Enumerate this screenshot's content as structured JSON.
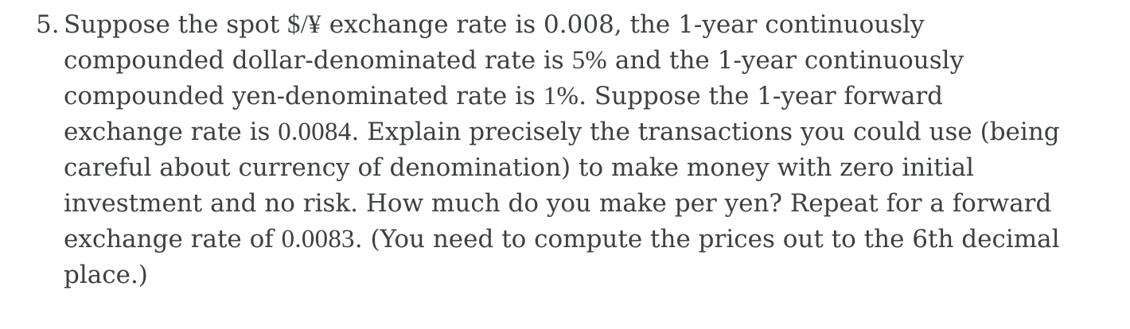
{
  "page": {
    "background_color": "#ffffff",
    "text_color": "#3d4043"
  },
  "problem": {
    "number": "5.",
    "full_text": "5. Suppose the spot $/¥ exchange rate is 0.008, the 1-year continuously compounded dollar-denominated rate is 5% and the 1-year continuously compounded yen-denominated rate is 1%. Suppose the 1-year forward exchange rate is 0.0084. Explain precisely the transactions you could use (being careful about currency of denomination) to make money with zero initial investment and no risk. How much do you make per yen? Repeat for a forward exchange rate of 0.0083. (You need to compute the prices out to the 6th decimal place.)",
    "lines": [
      [
        {
          "t": "Suppose the spot "
        },
        {
          "t": "$/¥",
          "m": true
        },
        {
          "t": " exchange rate is 0.008, the 1-year continuously"
        }
      ],
      [
        {
          "t": "compounded dollar-denominated rate is "
        },
        {
          "t": "5%",
          "m": true
        },
        {
          "t": " and the 1-year continuously"
        }
      ],
      [
        {
          "t": "compounded yen-denominated rate is "
        },
        {
          "t": "1%",
          "m": true
        },
        {
          "t": ". Suppose the 1-year forward"
        }
      ],
      [
        {
          "t": "exchange rate is "
        },
        {
          "t": "0.0084",
          "m": true
        },
        {
          "t": ". Explain precisely the transactions you could use (being"
        }
      ],
      [
        {
          "t": "careful about currency of denomination) to make money with zero initial"
        }
      ],
      [
        {
          "t": "investment and no risk. How much do you make per yen? Repeat for a forward"
        }
      ],
      [
        {
          "t": "exchange rate of "
        },
        {
          "t": "0.0083",
          "m": true
        },
        {
          "t": ". (You need to compute the prices out to the 6th decimal"
        }
      ],
      [
        {
          "t": "place.)"
        }
      ]
    ]
  }
}
